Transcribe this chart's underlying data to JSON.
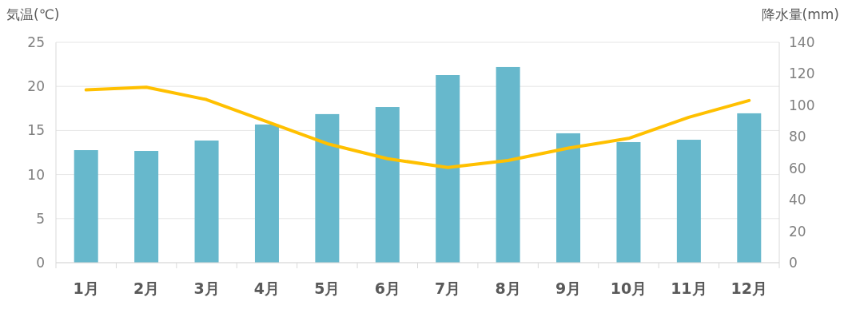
{
  "chart_data": {
    "type": "bar",
    "ylabel": "気温(℃)",
    "y2label": "降水量(mm)",
    "categories": [
      "1月",
      "2月",
      "3月",
      "4月",
      "5月",
      "6月",
      "7月",
      "8月",
      "9月",
      "10月",
      "11月",
      "12月"
    ],
    "series": [
      {
        "axis": "y2",
        "color": "#67b8cc",
        "values": [
          71.5,
          71,
          77.6,
          87.8,
          94.4,
          98.9,
          119.2,
          124.3,
          82.2,
          76.6,
          78.1,
          94.9
        ]
      },
      {
        "type": "line",
        "axis": "y",
        "color": "#ffc000",
        "values": [
          19.6,
          19.9,
          18.5,
          16.0,
          13.5,
          11.8,
          10.8,
          11.6,
          13.0,
          14.1,
          16.5,
          18.4
        ]
      }
    ],
    "ylim": [
      0,
      25
    ],
    "yticks": [
      0,
      5,
      10,
      15,
      20,
      25
    ],
    "y2lim": [
      0,
      140
    ],
    "y2ticks": [
      0,
      20,
      40,
      60,
      80,
      100,
      120,
      140
    ],
    "grid": "y"
  }
}
